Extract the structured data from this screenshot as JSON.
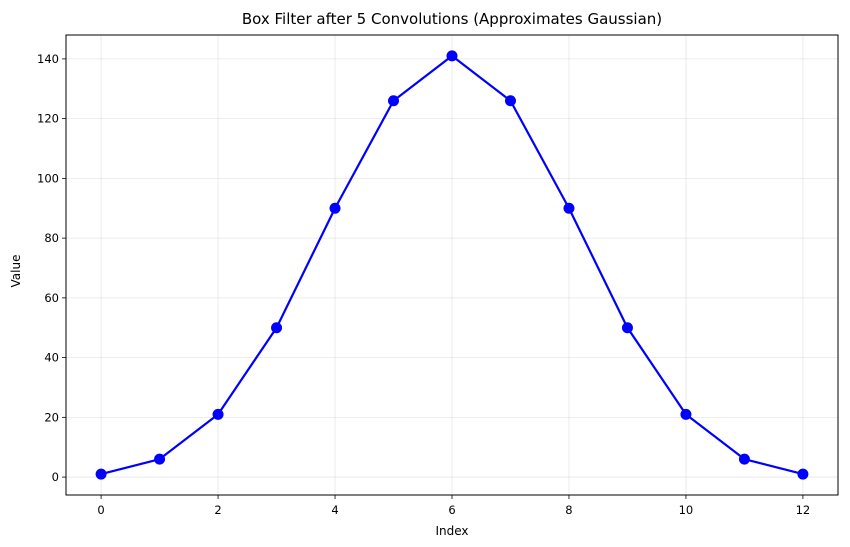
{
  "chart_data": {
    "type": "line",
    "title": "Box Filter after 5 Convolutions (Approximates Gaussian)",
    "xlabel": "Index",
    "ylabel": "Value",
    "x": [
      0,
      1,
      2,
      3,
      4,
      5,
      6,
      7,
      8,
      9,
      10,
      11,
      12
    ],
    "series": [
      {
        "values": [
          1,
          6,
          21,
          50,
          90,
          126,
          141,
          126,
          90,
          50,
          21,
          6,
          1
        ],
        "color": "#0000ff",
        "marker": "circle"
      }
    ],
    "xlim": [
      -0.6,
      12.6
    ],
    "ylim": [
      -6,
      148
    ],
    "xticks": [
      0,
      2,
      4,
      6,
      8,
      10,
      12
    ],
    "yticks": [
      0,
      20,
      40,
      60,
      80,
      100,
      120,
      140
    ],
    "grid": true,
    "legend": "none"
  }
}
